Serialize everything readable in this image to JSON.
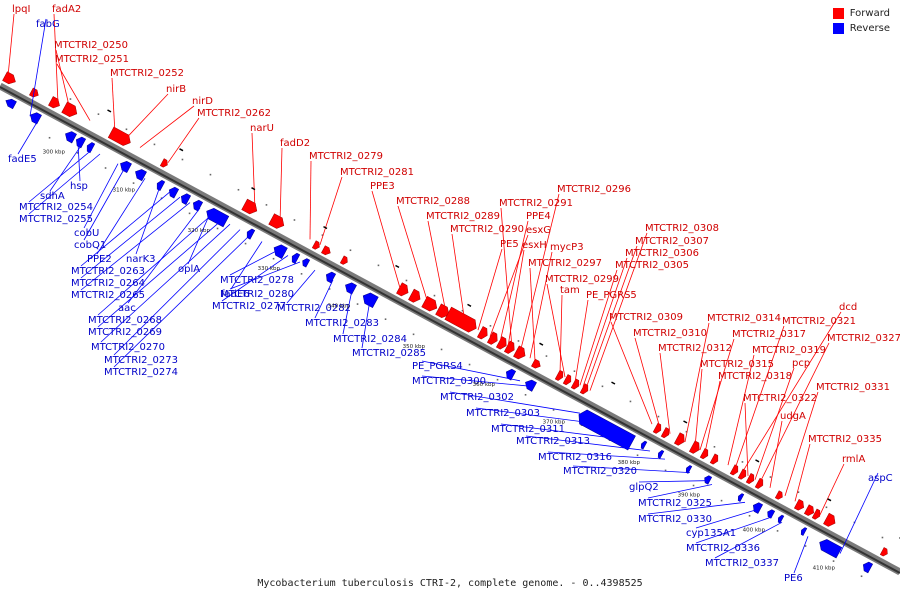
{
  "legend": {
    "forward_label": "Forward",
    "reverse_label": "Reverse",
    "forward_color": "#ff0000",
    "reverse_color": "#0000ff"
  },
  "caption": "Mycobacterium tuberculosis CTRI-2, complete genome. - 0..4398525",
  "ticks": [
    "300 kbp",
    "310 kbp",
    "320 kbp",
    "330 kbp",
    "340 kbp",
    "350 kbp",
    "360 kbp",
    "370 kbp",
    "380 kbp",
    "390 kbp",
    "400 kbp",
    "410 kbp"
  ],
  "forward_labels": [
    "lpqI",
    "fadA2",
    "MTCTRI2_0250",
    "MTCTRI2_0251",
    "MTCTRI2_0252",
    "nirB",
    "nirD",
    "MTCTRI2_0262",
    "narU",
    "fadD2",
    "MTCTRI2_0279",
    "MTCTRI2_0281",
    "PPE3",
    "MTCTRI2_0288",
    "MTCTRI2_0289",
    "MTCTRI2_0290",
    "PE5",
    "esxG",
    "PPE4",
    "esxH",
    "MTCTRI2_0291",
    "MTCTRI2_0296",
    "mycP3",
    "MTCTRI2_0297",
    "tam",
    "MTCTRI2_0299",
    "PE_PGRS5",
    "MTCTRI2_0305",
    "MTCTRI2_0306",
    "MTCTRI2_0307",
    "MTCTRI2_0308",
    "MTCTRI2_0309",
    "MTCTRI2_0310",
    "MTCTRI2_0312",
    "MTCTRI2_0314",
    "MTCTRI2_0315",
    "MTCTRI2_0317",
    "MTCTRI2_0318",
    "MTCTRI2_0319",
    "MTCTRI2_0321",
    "dcd",
    "MTCTRI2_0322",
    "pcp",
    "MTCTRI2_0327",
    "udgA",
    "MTCTRI2_0331",
    "MTCTRI2_0335",
    "rmlA"
  ],
  "reverse_labels": [
    "fabG",
    "fadE5",
    "hsp",
    "sdhA",
    "MTCTRI2_0254",
    "MTCTRI2_0255",
    "cobU",
    "cobQ1",
    "PPE2",
    "narK3",
    "MTCTRI2_0263",
    "MTCTRI2_0264",
    "MTCTRI2_0265",
    "aac",
    "MTCTRI2_0268",
    "MTCTRI2_0269",
    "MTCTRI2_0270",
    "MTCTRI2_0273",
    "MTCTRI2_0274",
    "oplA",
    "fadE6",
    "MTCTRI2_0278",
    "MTCTRI2_0277",
    "MTCTRI2_0280",
    "MTCTRI2_0282",
    "MTCTRI2_0283",
    "MTCTRI2_0284",
    "MTCTRI2_0285",
    "PE_PGRS4",
    "MTCTRI2_0300",
    "MTCTRI2_0302",
    "MTCTRI2_0303",
    "MTCTRI2_0311",
    "MTCTRI2_0313",
    "MTCTRI2_0316",
    "MTCTRI2_0320",
    "glpQ2",
    "MTCTRI2_0325",
    "MTCTRI2_0330",
    "cyp135A1",
    "MTCTRI2_0336",
    "MTCTRI2_0337",
    "PE6",
    "aspC"
  ]
}
